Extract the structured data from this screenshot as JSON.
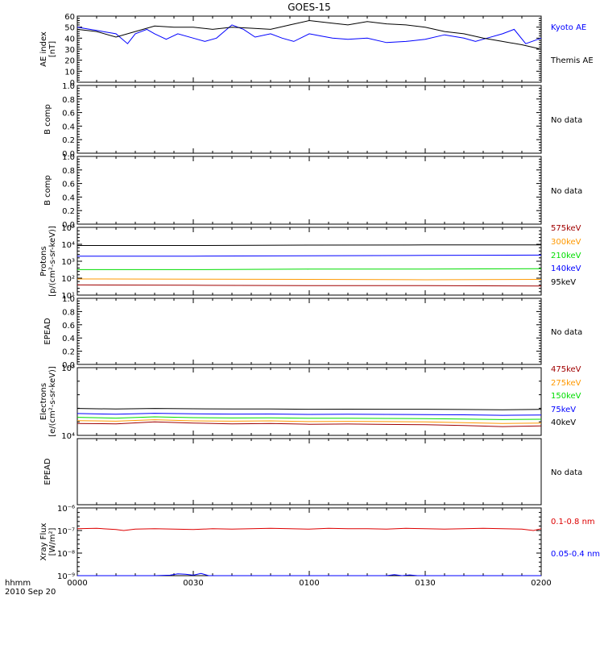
{
  "chart_data": {
    "title": "GOES-15",
    "type": "line",
    "x_ticks": [
      "0000",
      "0030",
      "0100",
      "0130",
      "0200"
    ],
    "x_corner_label": "hhmm",
    "date_label": "2010 Sep 20",
    "time_range": [
      "0000",
      "0200"
    ],
    "no_data_text": "No data",
    "panels": [
      {
        "id": "ae",
        "ylabel": [
          "AE index",
          "[nT]"
        ],
        "ylim": [
          0,
          60
        ],
        "scale": "linear",
        "yticks": [
          "0",
          "10",
          "20",
          "30",
          "40",
          "50",
          "60"
        ],
        "series": [
          {
            "name": "Kyoto AE",
            "color": "#0000ff",
            "x": [
              0,
              5,
              10,
              13,
              15,
              18,
              20,
              23,
              26,
              30,
              33,
              36,
              40,
              43,
              46,
              50,
              53,
              56,
              60,
              63,
              66,
              70,
              75,
              80,
              85,
              90,
              95,
              100,
              103,
              106,
              110,
              113,
              116,
              120
            ],
            "y": [
              50,
              47,
              44,
              35,
              44,
              48,
              44,
              39,
              44,
              40,
              37,
              40,
              52,
              48,
              41,
              44,
              40,
              37,
              44,
              42,
              40,
              39,
              40,
              36,
              37,
              39,
              43,
              40,
              37,
              40,
              44,
              48,
              35,
              40
            ]
          },
          {
            "name": "Themis AE",
            "color": "#000000",
            "x": [
              0,
              5,
              10,
              15,
              20,
              25,
              30,
              35,
              40,
              45,
              50,
              55,
              60,
              65,
              70,
              75,
              80,
              85,
              90,
              95,
              100,
              105,
              110,
              115,
              120
            ],
            "y": [
              48,
              46,
              41,
              46,
              51,
              50,
              50,
              48,
              50,
              49,
              48,
              52,
              56,
              54,
              52,
              55,
              53,
              52,
              50,
              46,
              44,
              40,
              37,
              34,
              30
            ]
          }
        ]
      },
      {
        "id": "b1",
        "ylabel": [
          "B comp"
        ],
        "ylim": [
          0,
          1
        ],
        "scale": "linear",
        "yticks": [
          "0.0",
          "0.2",
          "0.4",
          "0.6",
          "0.8",
          "1.0"
        ],
        "series": [],
        "no_data": true
      },
      {
        "id": "b2",
        "ylabel": [
          "B comp"
        ],
        "ylim": [
          0,
          1
        ],
        "scale": "linear",
        "yticks": [
          "0.0",
          "0.2",
          "0.4",
          "0.6",
          "0.8",
          "1.0"
        ],
        "series": [],
        "no_data": true
      },
      {
        "id": "protons",
        "ylabel": [
          "Protons",
          "[p/(cm²-s-sr-keV)]"
        ],
        "ylim": [
          10,
          100000
        ],
        "scale": "log",
        "yticks": [
          "10¹",
          "10²",
          "10³",
          "10⁴",
          "10⁵"
        ],
        "series": [
          {
            "name": "575keV",
            "color": "#a00000",
            "x": [
              0,
              30,
              60,
              90,
              120
            ],
            "y": [
              40,
              38,
              36,
              36,
              34
            ]
          },
          {
            "name": "300keV",
            "color": "#ff9900",
            "x": [
              0,
              30,
              60,
              90,
              120
            ],
            "y": [
              90,
              88,
              85,
              80,
              85
            ]
          },
          {
            "name": "210keV",
            "color": "#00dd00",
            "x": [
              0,
              30,
              60,
              90,
              120
            ],
            "y": [
              320,
              320,
              340,
              340,
              360
            ]
          },
          {
            "name": "140keV",
            "color": "#0000ff",
            "x": [
              0,
              30,
              60,
              90,
              120
            ],
            "y": [
              2000,
              2000,
              2100,
              2200,
              2300
            ]
          },
          {
            "name": "95keV",
            "color": "#000000",
            "x": [
              0,
              30,
              60,
              90,
              120
            ],
            "y": [
              8500,
              8500,
              9000,
              9200,
              9200
            ]
          }
        ]
      },
      {
        "id": "epead1",
        "ylabel": [
          "EPEAD"
        ],
        "ylim": [
          0,
          1
        ],
        "scale": "linear",
        "yticks": [
          "0.0",
          "0.2",
          "0.4",
          "0.6",
          "0.8",
          "1.0"
        ],
        "series": [],
        "no_data": true
      },
      {
        "id": "electrons",
        "ylabel": [
          "Electrons",
          "[e/(cm²-s-sr-keV)]"
        ],
        "ylim": [
          10000,
          100000
        ],
        "scale": "log",
        "yticks": [
          "10⁴",
          "10⁵"
        ],
        "series": [
          {
            "name": "475keV",
            "color": "#a00000",
            "x": [
              0,
              10,
              20,
              30,
              40,
              50,
              60,
              70,
              80,
              90,
              100,
              110,
              120
            ],
            "y": [
              15000,
              14800,
              15800,
              15200,
              14800,
              15000,
              14600,
              14700,
              14500,
              14400,
              14000,
              13500,
              13800
            ]
          },
          {
            "name": "275keV",
            "color": "#ff9900",
            "x": [
              0,
              10,
              20,
              30,
              40,
              50,
              60,
              70,
              80,
              90,
              100,
              110,
              120
            ],
            "y": [
              16500,
              16200,
              17000,
              16400,
              16200,
              16400,
              16000,
              16100,
              16000,
              15800,
              15400,
              15000,
              15200
            ]
          },
          {
            "name": "150keV",
            "color": "#00dd00",
            "x": [
              0,
              10,
              20,
              30,
              40,
              50,
              60,
              70,
              80,
              90,
              100,
              110,
              120
            ],
            "y": [
              18500,
              18000,
              18800,
              18300,
              18100,
              18200,
              17900,
              17900,
              17800,
              17700,
              17400,
              17100,
              17300
            ]
          },
          {
            "name": "75keV",
            "color": "#0000ff",
            "x": [
              0,
              10,
              20,
              30,
              40,
              50,
              60,
              70,
              80,
              90,
              100,
              110,
              120
            ],
            "y": [
              21000,
              20500,
              21200,
              20800,
              20600,
              20700,
              20400,
              20500,
              20400,
              20300,
              20100,
              19800,
              20000
            ]
          },
          {
            "name": "40keV",
            "color": "#000000",
            "x": [
              0,
              10,
              20,
              30,
              40,
              50,
              60,
              70,
              80,
              90,
              100,
              110,
              120
            ],
            "y": [
              25000,
              24500,
              25000,
              24700,
              24500,
              24600,
              24300,
              24400,
              24300,
              24300,
              24100,
              23900,
              24200
            ]
          }
        ]
      },
      {
        "id": "epead2",
        "ylabel": [
          "EPEAD"
        ],
        "ylim": [
          0,
          1
        ],
        "scale": "linear",
        "yticks": [],
        "series": [],
        "no_data": true
      },
      {
        "id": "xray",
        "ylabel": [
          "Xray Flux",
          "[W/m²]"
        ],
        "ylim": [
          1e-09,
          1e-06
        ],
        "scale": "log",
        "yticks": [
          "10⁻⁹",
          "10⁻⁸",
          "10⁻⁷",
          "10⁻⁶"
        ],
        "series": [
          {
            "name": "0.1-0.8 nm",
            "color": "#dd0000",
            "x": [
              0,
              5,
              10,
              12,
              15,
              20,
              25,
              30,
              35,
              40,
              45,
              50,
              55,
              60,
              65,
              70,
              75,
              80,
              85,
              90,
              95,
              100,
              105,
              110,
              115,
              118,
              120
            ],
            "y": [
              1.2e-07,
              1.25e-07,
              1.1e-07,
              1e-07,
              1.15e-07,
              1.2e-07,
              1.15e-07,
              1.1e-07,
              1.2e-07,
              1.15e-07,
              1.2e-07,
              1.25e-07,
              1.2e-07,
              1.15e-07,
              1.25e-07,
              1.2e-07,
              1.2e-07,
              1.15e-07,
              1.25e-07,
              1.2e-07,
              1.15e-07,
              1.2e-07,
              1.25e-07,
              1.2e-07,
              1.15e-07,
              1e-07,
              1.2e-07
            ]
          },
          {
            "name": "0.05-0.4 nm",
            "color": "#0000ff",
            "x": [
              0,
              20,
              24,
              26,
              28,
              30,
              32,
              34,
              60,
              80,
              82,
              84,
              86,
              88,
              120
            ],
            "y": [
              1e-09,
              1e-09,
              1.05e-09,
              1.2e-09,
              1.15e-09,
              1.05e-09,
              1.25e-09,
              1e-09,
              1e-09,
              1e-09,
              1.1e-09,
              1e-09,
              1.08e-09,
              1e-09,
              1e-09
            ]
          }
        ]
      }
    ]
  }
}
